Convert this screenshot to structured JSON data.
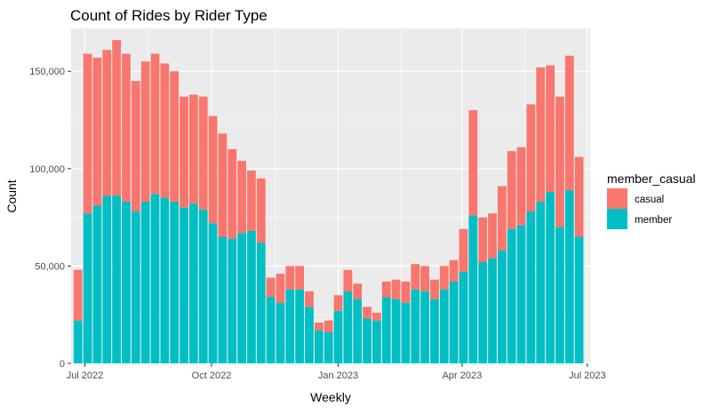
{
  "chart_data": {
    "type": "bar",
    "stacked": true,
    "title": "Count of Rides by Rider Type",
    "xlabel": "Weekly",
    "ylabel": "Count",
    "ylim": [
      0,
      172000
    ],
    "y_ticks": [
      0,
      50000,
      100000,
      150000
    ],
    "y_tick_labels": [
      "0",
      "50,000",
      "100,000",
      "150,000"
    ],
    "x_ticks": [
      "2022-07-01",
      "2022-10-01",
      "2023-01-01",
      "2023-04-01",
      "2023-07-01"
    ],
    "x_tick_labels": [
      "Jul 2022",
      "Oct 2022",
      "Jan 2023",
      "Apr 2023",
      "Jul 2023"
    ],
    "xlim": [
      "2022-06-21",
      "2023-07-03"
    ],
    "x": [
      "2022-06-26",
      "2022-07-03",
      "2022-07-10",
      "2022-07-17",
      "2022-07-24",
      "2022-07-31",
      "2022-08-07",
      "2022-08-14",
      "2022-08-21",
      "2022-08-28",
      "2022-09-04",
      "2022-09-11",
      "2022-09-18",
      "2022-09-25",
      "2022-10-02",
      "2022-10-09",
      "2022-10-16",
      "2022-10-23",
      "2022-10-30",
      "2022-11-06",
      "2022-11-13",
      "2022-11-20",
      "2022-11-27",
      "2022-12-04",
      "2022-12-11",
      "2022-12-18",
      "2022-12-25",
      "2023-01-01",
      "2023-01-08",
      "2023-01-15",
      "2023-01-22",
      "2023-01-29",
      "2023-02-05",
      "2023-02-12",
      "2023-02-19",
      "2023-02-26",
      "2023-03-05",
      "2023-03-12",
      "2023-03-19",
      "2023-03-26",
      "2023-04-02",
      "2023-04-09",
      "2023-04-16",
      "2023-04-23",
      "2023-04-30",
      "2023-05-07",
      "2023-05-14",
      "2023-05-21",
      "2023-05-28",
      "2023-06-04",
      "2023-06-11",
      "2023-06-18",
      "2023-06-25"
    ],
    "series": [
      {
        "name": "member",
        "color": "#00BFC4",
        "values": [
          22000,
          77000,
          81000,
          86000,
          86000,
          83000,
          78000,
          83000,
          87000,
          85000,
          83000,
          80000,
          82000,
          79000,
          72000,
          65000,
          64000,
          67000,
          68000,
          62000,
          34000,
          31000,
          38000,
          38000,
          29000,
          17000,
          16000,
          27000,
          37000,
          33000,
          23000,
          22000,
          34000,
          33000,
          31000,
          38000,
          37000,
          33000,
          38000,
          42000,
          47000,
          76000,
          52000,
          54000,
          58000,
          69000,
          71000,
          78000,
          83000,
          88000,
          70000,
          89000,
          65000
        ]
      },
      {
        "name": "casual",
        "color": "#F8766D",
        "values": [
          26000,
          82000,
          76000,
          75000,
          80000,
          76000,
          67000,
          72000,
          72000,
          69000,
          67000,
          57000,
          56000,
          58000,
          55000,
          53000,
          46000,
          37000,
          31000,
          33000,
          10000,
          15000,
          12000,
          12000,
          8000,
          4000,
          6000,
          8000,
          11000,
          8000,
          6000,
          4000,
          8000,
          10000,
          11000,
          13000,
          13000,
          10000,
          12000,
          11000,
          22000,
          54000,
          23000,
          23000,
          33000,
          40000,
          40000,
          55000,
          69000,
          65000,
          67000,
          69000,
          41000
        ]
      }
    ],
    "legend": {
      "title": "member_casual",
      "position": "right",
      "entries": [
        "casual",
        "member"
      ]
    },
    "grid": true
  }
}
